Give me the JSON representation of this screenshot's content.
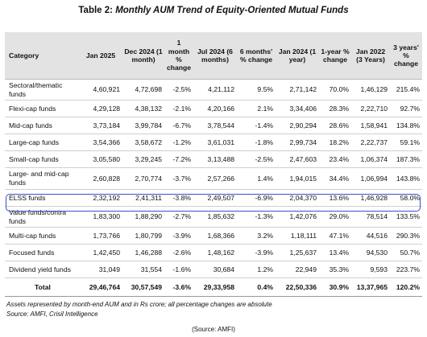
{
  "header": {
    "prefix": "Table 2:",
    "title": "Monthly AUM Trend of Equity-Oriented Mutual Funds"
  },
  "table": {
    "columns": [
      "Category",
      "Jan 2025",
      "Dec 2024 (1 month)",
      "1 month % change",
      "Jul 2024 (6 months)",
      "6 months' % change",
      "Jan 2024 (1 year)",
      "1-year % change",
      "Jan 2022 (3 Years)",
      "3 years' % change"
    ],
    "rows": [
      [
        "Sectoral/thematic funds",
        "4,60,921",
        "4,72,698",
        "-2.5%",
        "4,21,112",
        "9.5%",
        "2,71,142",
        "70.0%",
        "1,46,129",
        "215.4%"
      ],
      [
        "Flexi-cap funds",
        "4,29,128",
        "4,38,132",
        "-2.1%",
        "4,20,166",
        "2.1%",
        "3,34,406",
        "28.3%",
        "2,22,710",
        "92.7%"
      ],
      [
        "Mid-cap funds",
        "3,73,184",
        "3,99,784",
        "-6.7%",
        "3,78,544",
        "-1.4%",
        "2,90,294",
        "28.6%",
        "1,58,941",
        "134.8%"
      ],
      [
        "Large-cap funds",
        "3,54,366",
        "3,58,672",
        "-1.2%",
        "3,61,031",
        "-1.8%",
        "2,99,734",
        "18.2%",
        "2,22,737",
        "59.1%"
      ],
      [
        "Small-cap funds",
        "3,05,580",
        "3,29,245",
        "-7.2%",
        "3,13,488",
        "-2.5%",
        "2,47,603",
        "23.4%",
        "1,06,374",
        "187.3%"
      ],
      [
        "Large- and mid-cap funds",
        "2,60,828",
        "2,70,774",
        "-3.7%",
        "2,57,266",
        "1.4%",
        "1,94,015",
        "34.4%",
        "1,06,994",
        "143.8%"
      ],
      [
        "ELSS funds",
        "2,32,192",
        "2,41,311",
        "-3.8%",
        "2,49,507",
        "-6.9%",
        "2,04,370",
        "13.6%",
        "1,46,928",
        "58.0%"
      ],
      [
        "Value funds/contra funds",
        "1,83,300",
        "1,88,290",
        "-2.7%",
        "1,85,632",
        "-1.3%",
        "1,42,076",
        "29.0%",
        "78,514",
        "133.5%"
      ],
      [
        "Multi-cap funds",
        "1,73,766",
        "1,80,799",
        "-3.9%",
        "1,68,366",
        "3.2%",
        "1,18,111",
        "47.1%",
        "44,516",
        "290.3%"
      ],
      [
        "Focused funds",
        "1,42,450",
        "1,46,288",
        "-2.6%",
        "1,48,162",
        "-3.9%",
        "1,25,637",
        "13.4%",
        "94,530",
        "50.7%"
      ],
      [
        "Dividend yield funds",
        "31,049",
        "31,554",
        "-1.6%",
        "30,684",
        "1.2%",
        "22,949",
        "35.3%",
        "9,593",
        "223.7%"
      ],
      [
        "Total",
        "29,46,764",
        "30,57,549",
        "-3.6%",
        "29,33,958",
        "0.4%",
        "22,50,336",
        "30.9%",
        "13,37,965",
        "120.2%"
      ]
    ]
  },
  "notes": [
    "Assets represented by month-end AUM and in Rs crore; all percentage changes are absolute",
    "Source: AMFI, Crisil Intelligence"
  ],
  "source": "(Source: AMFI)"
}
